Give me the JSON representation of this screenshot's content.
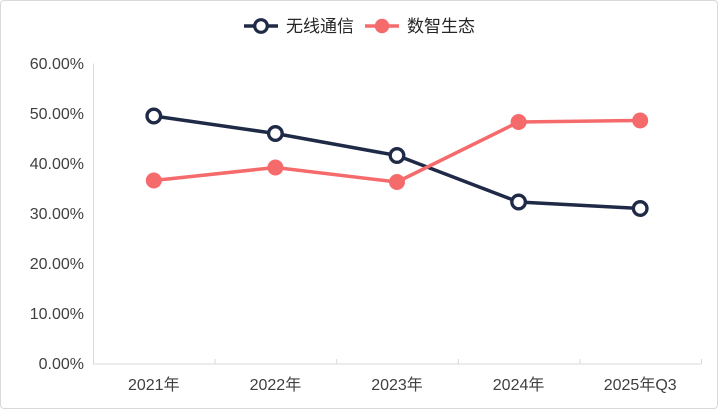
{
  "colors": {
    "background": "#ffffff",
    "border": "#d9d9d9",
    "axis_line": "#d9d9d9",
    "tick_label": "#404040",
    "legend_text": "#262626"
  },
  "chart_data": {
    "type": "line",
    "title": "",
    "categories": [
      "2021年",
      "2022年",
      "2023年",
      "2024年",
      "2025年Q3"
    ],
    "series": [
      {
        "name": "无线通信",
        "color": "#1f2a47",
        "marker": "open-circle",
        "values": [
          49.5,
          46.0,
          41.6,
          32.3,
          31.0
        ]
      },
      {
        "name": "数智生态",
        "color": "#f56b6c",
        "marker": "filled-circle",
        "values": [
          36.6,
          39.2,
          36.3,
          48.3,
          48.6
        ]
      }
    ],
    "unit": "%",
    "ylim": [
      0,
      60
    ],
    "ytick_step": 10,
    "ytick_labels": [
      "0.00%",
      "10.00%",
      "20.00%",
      "30.00%",
      "40.00%",
      "50.00%",
      "60.00%"
    ],
    "grid": false,
    "legend_position": "top-center"
  }
}
